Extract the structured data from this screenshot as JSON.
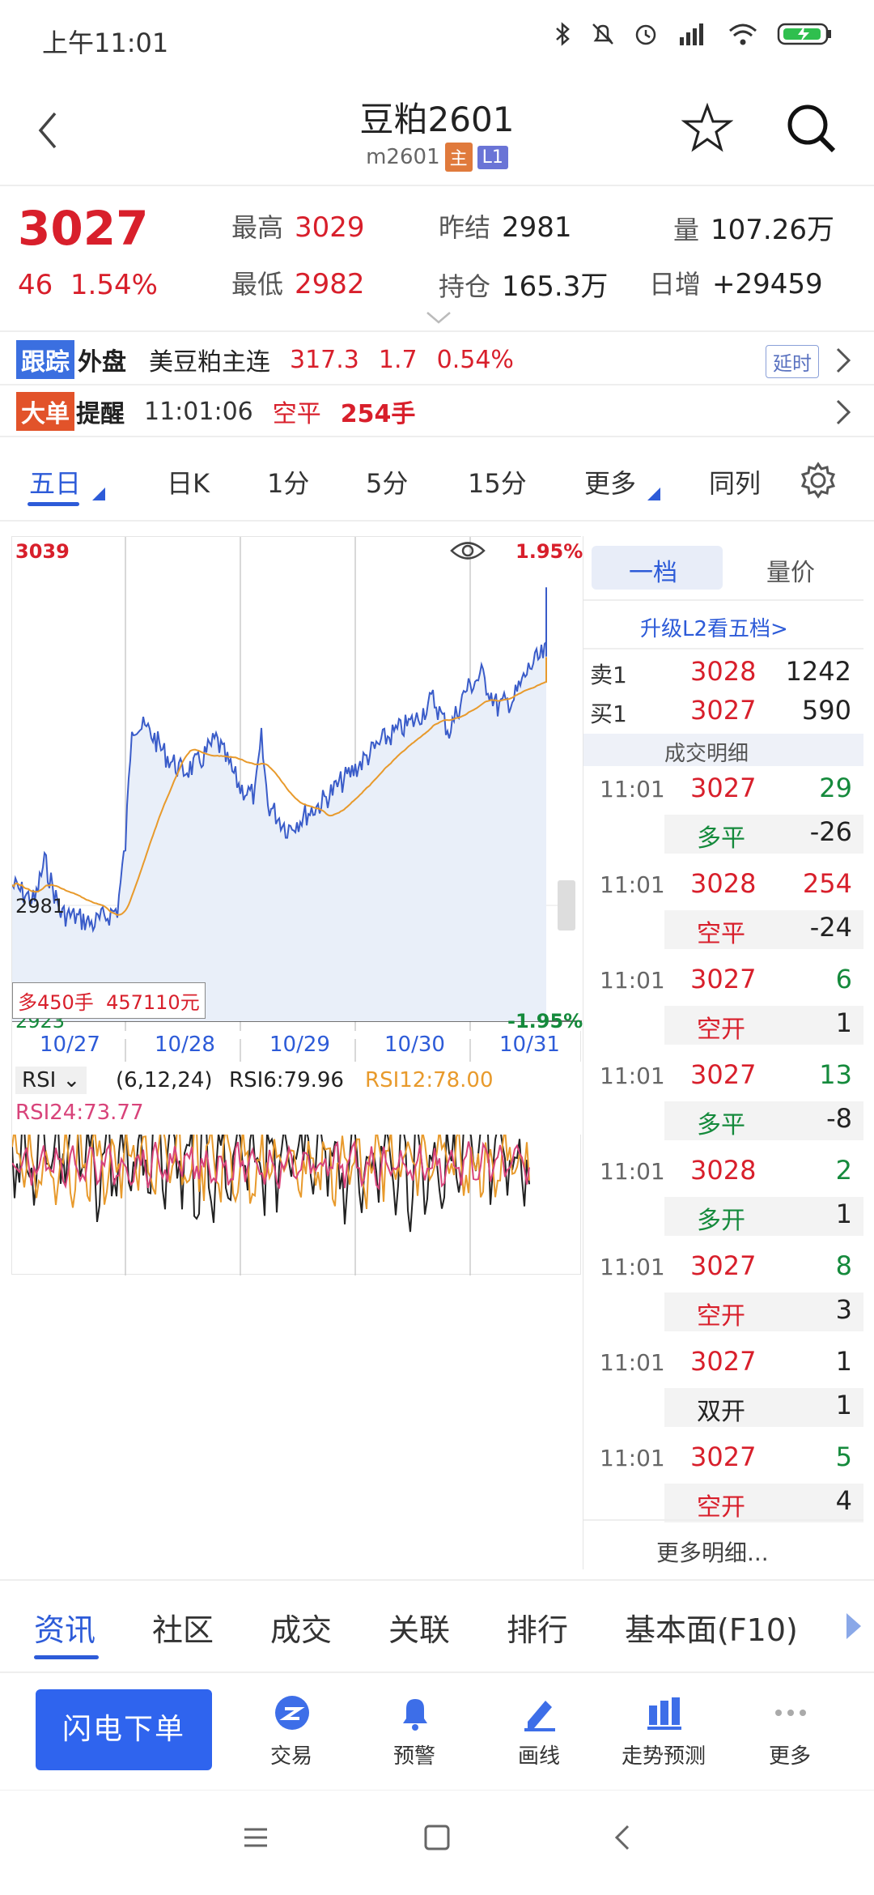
{
  "status": {
    "time": "上午11:01"
  },
  "header": {
    "title": "豆粕2601",
    "code": "m2601",
    "badge_main": "主",
    "badge_l1": "L1"
  },
  "quote": {
    "price": "3027",
    "change": "46",
    "pct": "1.54%",
    "high_label": "最高",
    "high": "3029",
    "low_label": "最低",
    "low": "2982",
    "prev_label": "昨结",
    "prev": "2981",
    "oi_label": "持仓",
    "oi": "165.3万",
    "vol_label": "量",
    "vol": "107.26万",
    "inc_label": "日增",
    "inc": "+29459"
  },
  "foreign": {
    "tag1": "跟踪",
    "tag2": "外盘",
    "name": "美豆粕主连",
    "price": "317.3",
    "chg": "1.7",
    "pct": "0.54%",
    "delay": "延时"
  },
  "alert": {
    "tag1": "大单",
    "tag2": "提醒",
    "time": "11:01:06",
    "type": "空平",
    "qty": "254手"
  },
  "tabs": [
    "五日",
    "日K",
    "1分",
    "5分",
    "15分",
    "更多",
    "同列"
  ],
  "chart": {
    "top_price": "3039",
    "mid_price": "2981",
    "bottom_price": "2923",
    "top_pct": "1.95%",
    "bottom_pct": "-1.95%",
    "dates": [
      "10/27",
      "10/28",
      "10/29",
      "10/30",
      "10/31"
    ],
    "order_tag": "多450手",
    "order_amount": "457110元"
  },
  "chart_data": {
    "type": "line",
    "x": [
      "10/27",
      "10/28",
      "10/29",
      "10/30",
      "10/31"
    ],
    "ylim": [
      2923,
      3039
    ],
    "series": []
  },
  "rsi": {
    "selector": "RSI",
    "params": "(6,12,24)",
    "rsi6": "RSI6:79.96",
    "rsi12": "RSI12:78.00",
    "rsi24": "RSI24:73.77"
  },
  "side": {
    "tab_active": "一档",
    "tab_other": "量价",
    "upgrade": "升级L2看五档>",
    "sell_label": "卖1",
    "sell_price": "3028",
    "sell_vol": "1242",
    "buy_label": "买1",
    "buy_price": "3027",
    "buy_vol": "590",
    "detail_title": "成交明细",
    "trades": [
      {
        "time": "11:01",
        "price": "3027",
        "vol": "29",
        "type": "多平",
        "delta": "-26"
      },
      {
        "time": "11:01",
        "price": "3028",
        "vol": "254",
        "type": "空平",
        "delta": "-24"
      },
      {
        "time": "11:01",
        "price": "3027",
        "vol": "6",
        "type": "空开",
        "delta": "1"
      },
      {
        "time": "11:01",
        "price": "3027",
        "vol": "13",
        "type": "多平",
        "delta": "-8"
      },
      {
        "time": "11:01",
        "price": "3028",
        "vol": "2",
        "type": "多开",
        "delta": "1"
      },
      {
        "time": "11:01",
        "price": "3027",
        "vol": "8",
        "type": "空开",
        "delta": "3"
      },
      {
        "time": "11:01",
        "price": "3027",
        "vol": "1",
        "type": "双开",
        "delta": "1"
      },
      {
        "time": "11:01",
        "price": "3027",
        "vol": "5",
        "type": "空开",
        "delta": "4"
      }
    ],
    "more": "更多明细..."
  },
  "trade_tabs": [
    "资讯",
    "社区",
    "成交",
    "关联",
    "排行",
    "基本面(F10)"
  ],
  "bottom": {
    "flash": "闪电下单",
    "items": [
      "交易",
      "预警",
      "画线",
      "走势预测",
      "更多"
    ]
  },
  "colors": {
    "red": "#d81f2b",
    "green": "#158a3c",
    "blue": "#2d5bd8",
    "orange": "#e89a2c"
  }
}
